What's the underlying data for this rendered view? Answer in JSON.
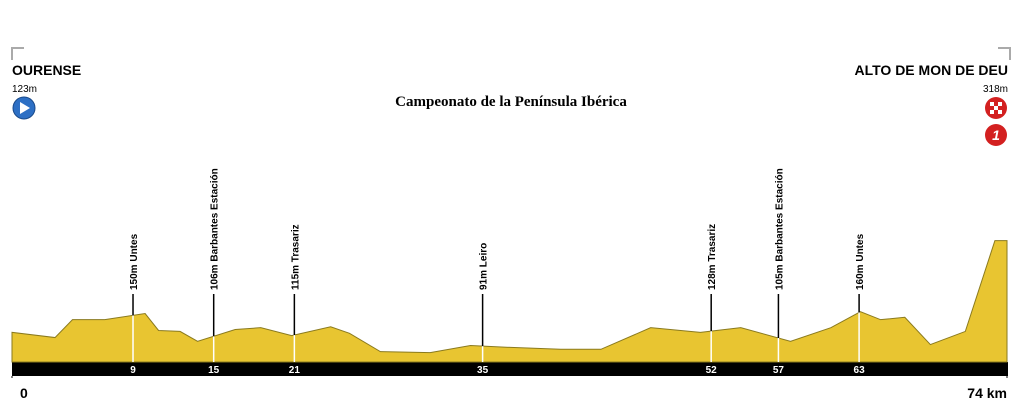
{
  "chart_data": {
    "type": "profile",
    "title": "Campeonato de la Península Ibérica",
    "start": {
      "name": "OURENSE",
      "elevation": "123m"
    },
    "finish": {
      "name": "ALTO DE MON DE DEU",
      "elevation": "318m",
      "category": "1"
    },
    "x": [
      0,
      3.2,
      4.5,
      6.9,
      9.9,
      10.9,
      12.5,
      13.8,
      16.6,
      18.5,
      20.8,
      23.7,
      25.1,
      27.4,
      31.1,
      34.1,
      37.1,
      40.8,
      43.8,
      47.5,
      51.2,
      54.2,
      57.9,
      60.9,
      63.1,
      64.6,
      66.4,
      68.3,
      70.9,
      73.1,
      74
    ],
    "values": [
      123,
      112,
      150,
      150,
      163,
      127,
      125,
      104,
      129,
      133,
      116,
      135,
      121,
      82,
      80,
      95,
      91,
      87,
      87,
      133,
      123,
      133,
      104,
      133,
      167,
      150,
      155,
      97,
      125,
      318,
      318
    ],
    "color": "#e8c531",
    "xlim": [
      0,
      74
    ],
    "ylim": [
      60,
      330
    ],
    "xticks": [
      0,
      {
        "value": 74,
        "label": "74 km"
      }
    ],
    "waypoints": [
      {
        "km": 9,
        "label": "150m Untes"
      },
      {
        "km": 15,
        "label": "106m Barbantes Estación"
      },
      {
        "km": 21,
        "label": "115m Trasariz"
      },
      {
        "km": 35,
        "label": "91m Leiro"
      },
      {
        "km": 52,
        "label": "128m Trasariz"
      },
      {
        "km": 57,
        "label": "105m Barbantes Estación"
      },
      {
        "km": 63,
        "label": "160m Untes"
      }
    ]
  }
}
